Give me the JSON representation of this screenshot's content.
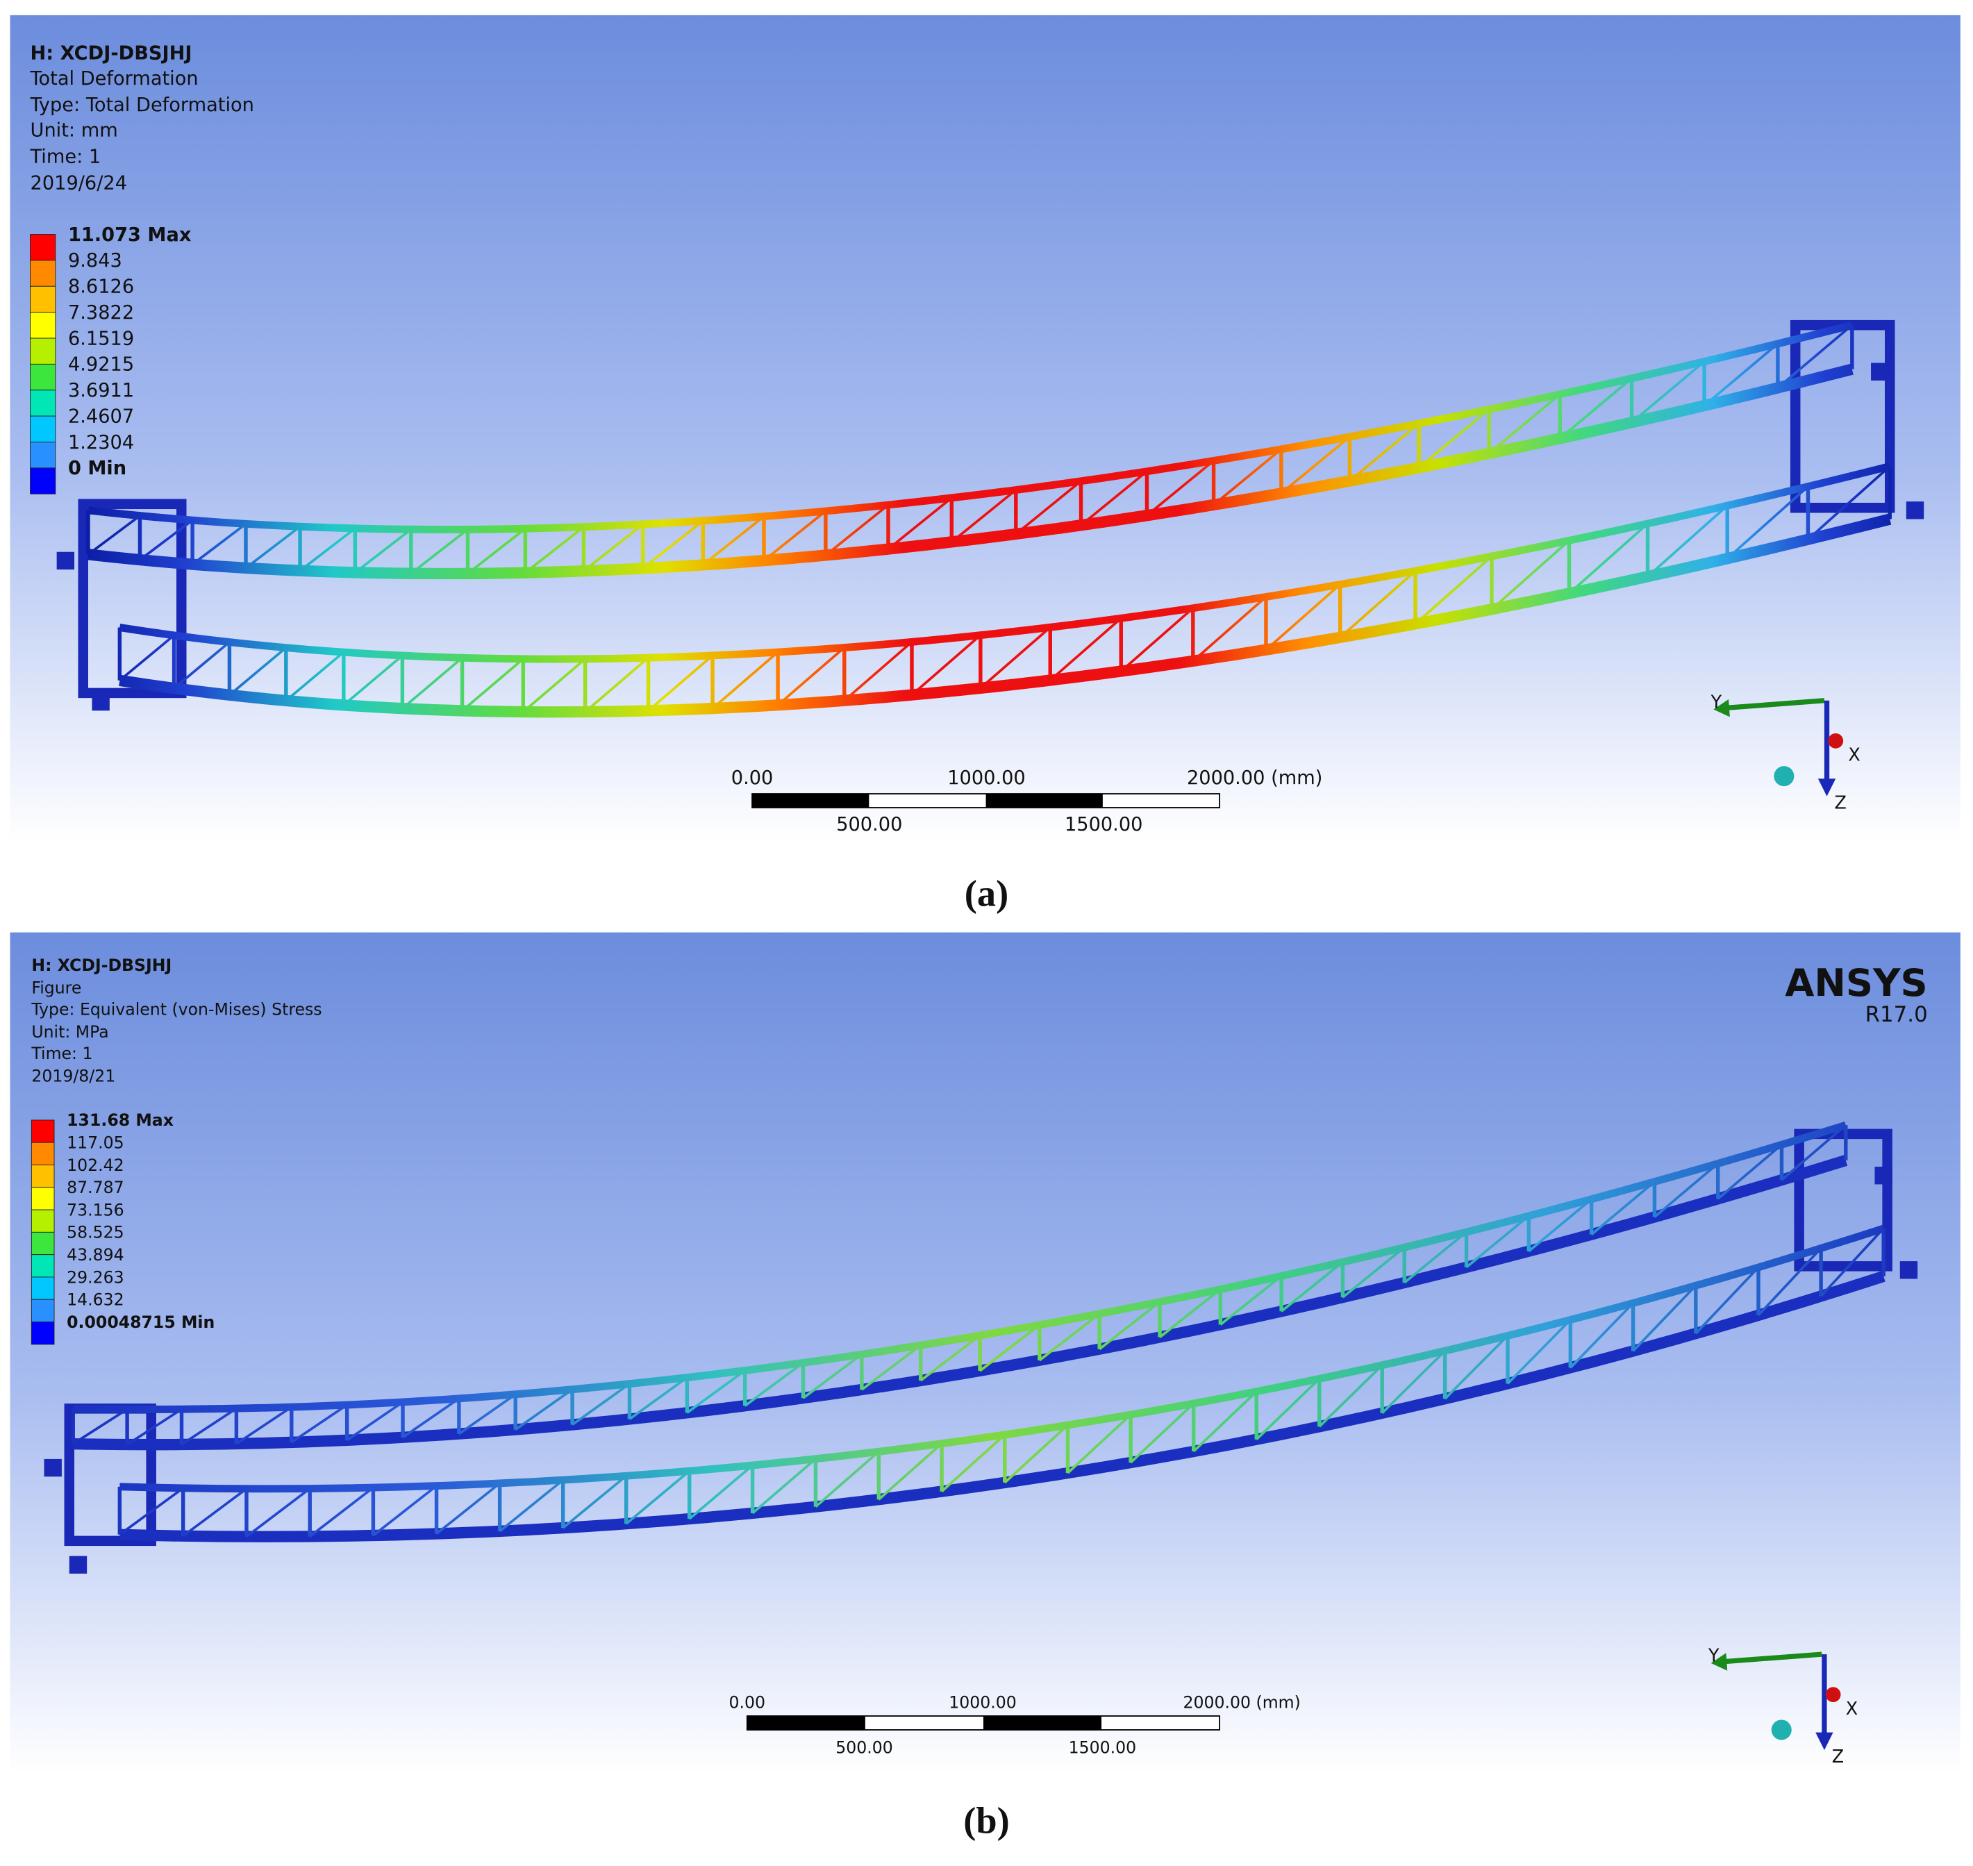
{
  "panels": [
    {
      "header": [
        "H: XCDJ-DBSJHJ",
        "Total Deformation",
        "Type: Total Deformation",
        "Unit: mm",
        "Time: 1",
        "2019/6/24"
      ],
      "legend": [
        "11.073 Max",
        "9.843",
        "8.6126",
        "7.3822",
        "6.1519",
        "4.9215",
        "3.6911",
        "2.4607",
        "1.2304",
        "0 Min"
      ],
      "legend_colors": [
        "#ff0000",
        "#ff8a00",
        "#ffc000",
        "#ffff00",
        "#b4f000",
        "#3ce63c",
        "#00e6b4",
        "#00c8ff",
        "#2890ff",
        "#0000ff"
      ],
      "scale_top": [
        "0.00",
        "1000.00",
        "2000.00 (mm)"
      ],
      "scale_bottom": [
        "500.00",
        "1500.00"
      ],
      "axes": [
        "Y",
        "X",
        "Z"
      ],
      "caption": "(a)"
    },
    {
      "header": [
        "H: XCDJ-DBSJHJ",
        "Figure",
        "Type: Equivalent (von-Mises) Stress",
        "Unit: MPa",
        "Time: 1",
        "2019/8/21"
      ],
      "legend": [
        "131.68 Max",
        "117.05",
        "102.42",
        "87.787",
        "73.156",
        "58.525",
        "43.894",
        "29.263",
        "14.632",
        "0.00048715 Min"
      ],
      "legend_colors": [
        "#ff0000",
        "#ff8a00",
        "#ffc000",
        "#ffff00",
        "#b4f000",
        "#3ce63c",
        "#00e6b4",
        "#00c8ff",
        "#2890ff",
        "#0000ff"
      ],
      "scale_top": [
        "0.00",
        "1000.00",
        "2000.00 (mm)"
      ],
      "scale_bottom": [
        "500.00",
        "1500.00"
      ],
      "axes": [
        "Y",
        "X",
        "Z"
      ],
      "logo": [
        "ANSYS",
        "R17.0"
      ],
      "caption": "(b)"
    }
  ]
}
